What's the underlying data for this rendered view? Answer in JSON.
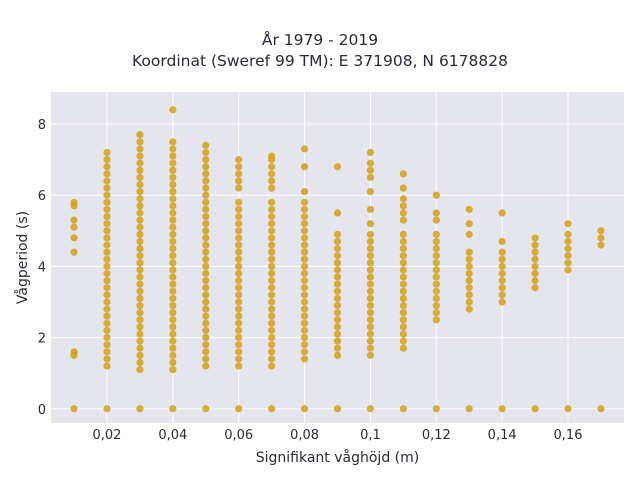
{
  "chart_data": {
    "type": "scatter",
    "title": [
      "År 1979 - 2019",
      "Koordinat (Sweref 99 TM): E 371908, N 6178828"
    ],
    "xlabel": "Signifikant våghöjd (m)",
    "ylabel": "Vågperiod (s)",
    "xlim": [
      0.003,
      0.177
    ],
    "ylim": [
      -0.4,
      8.9
    ],
    "x_ticks": [
      0.02,
      0.04,
      0.06,
      0.08,
      0.1,
      0.12,
      0.14,
      0.16
    ],
    "x_tick_labels": [
      "0,02",
      "0,04",
      "0,06",
      "0,08",
      "0,1",
      "0,12",
      "0,14",
      "0,16"
    ],
    "y_ticks": [
      0,
      2,
      4,
      6,
      8
    ],
    "y_tick_labels": [
      "0",
      "2",
      "4",
      "6",
      "8"
    ],
    "grid": true,
    "colors": {
      "marker": "#D4A017",
      "plot_bg": "#E5E5EE",
      "grid": "#ffffff"
    },
    "series": [
      {
        "x": 0.01,
        "y": [
          0,
          1.5,
          1.6,
          4.4,
          4.8,
          5.1,
          5.3,
          5.7,
          5.8
        ]
      },
      {
        "x": 0.02,
        "y": [
          0,
          1.2,
          1.4,
          1.6,
          1.8,
          2.0,
          2.2,
          2.4,
          2.6,
          2.8,
          3.0,
          3.2,
          3.4,
          3.6,
          3.8,
          4.0,
          4.2,
          4.4,
          4.6,
          4.8,
          5.0,
          5.2,
          5.4,
          5.6,
          5.8,
          6.0,
          6.2,
          6.4,
          6.6,
          6.8,
          7.0,
          7.2
        ]
      },
      {
        "x": 0.03,
        "y": [
          0,
          1.1,
          1.3,
          1.5,
          1.7,
          1.9,
          2.1,
          2.3,
          2.5,
          2.7,
          2.9,
          3.1,
          3.3,
          3.5,
          3.7,
          3.9,
          4.1,
          4.3,
          4.5,
          4.7,
          4.9,
          5.1,
          5.3,
          5.5,
          5.7,
          5.9,
          6.1,
          6.3,
          6.5,
          6.7,
          6.9,
          7.1,
          7.3,
          7.5,
          7.7
        ]
      },
      {
        "x": 0.04,
        "y": [
          0,
          1.1,
          1.3,
          1.5,
          1.7,
          1.9,
          2.1,
          2.3,
          2.5,
          2.7,
          2.9,
          3.1,
          3.3,
          3.5,
          3.7,
          3.9,
          4.1,
          4.3,
          4.5,
          4.7,
          4.9,
          5.1,
          5.3,
          5.5,
          5.7,
          5.9,
          6.1,
          6.3,
          6.5,
          6.7,
          6.9,
          7.1,
          7.3,
          7.5,
          8.4
        ]
      },
      {
        "x": 0.05,
        "y": [
          0,
          1.2,
          1.4,
          1.6,
          1.8,
          2.0,
          2.2,
          2.4,
          2.6,
          2.8,
          3.0,
          3.2,
          3.4,
          3.6,
          3.8,
          4.0,
          4.2,
          4.4,
          4.6,
          4.8,
          5.0,
          5.2,
          5.4,
          5.6,
          5.8,
          6.0,
          6.2,
          6.4,
          6.6,
          6.8,
          7.0,
          7.2,
          7.4
        ]
      },
      {
        "x": 0.06,
        "y": [
          0,
          1.2,
          1.4,
          1.6,
          1.8,
          2.0,
          2.2,
          2.4,
          2.6,
          2.8,
          3.0,
          3.2,
          3.4,
          3.6,
          3.8,
          4.0,
          4.2,
          4.4,
          4.6,
          4.8,
          5.0,
          5.2,
          5.4,
          5.6,
          5.8,
          6.2,
          6.4,
          6.6,
          6.8,
          7.0
        ]
      },
      {
        "x": 0.07,
        "y": [
          0,
          1.2,
          1.4,
          1.6,
          1.8,
          2.0,
          2.2,
          2.4,
          2.6,
          2.8,
          3.0,
          3.2,
          3.4,
          3.6,
          3.8,
          4.0,
          4.2,
          4.4,
          4.6,
          4.8,
          5.0,
          5.2,
          5.4,
          5.6,
          5.8,
          6.2,
          6.4,
          6.6,
          6.8,
          7.0,
          7.1
        ]
      },
      {
        "x": 0.08,
        "y": [
          0,
          1.4,
          1.6,
          1.8,
          2.0,
          2.2,
          2.4,
          2.6,
          2.8,
          3.0,
          3.2,
          3.4,
          3.6,
          3.8,
          4.0,
          4.2,
          4.4,
          4.6,
          4.8,
          5.0,
          5.2,
          5.4,
          5.6,
          5.8,
          6.1,
          6.8,
          7.3
        ]
      },
      {
        "x": 0.09,
        "y": [
          0,
          1.5,
          1.7,
          1.9,
          2.1,
          2.3,
          2.5,
          2.7,
          2.9,
          3.1,
          3.3,
          3.5,
          3.7,
          3.9,
          4.1,
          4.3,
          4.5,
          4.7,
          4.9,
          5.5,
          6.8
        ]
      },
      {
        "x": 0.1,
        "y": [
          0,
          1.5,
          1.7,
          1.9,
          2.1,
          2.3,
          2.5,
          2.7,
          2.9,
          3.1,
          3.3,
          3.5,
          3.7,
          3.9,
          4.1,
          4.3,
          4.5,
          4.7,
          4.9,
          5.2,
          5.6,
          6.1,
          6.5,
          6.7,
          6.9,
          7.2
        ]
      },
      {
        "x": 0.11,
        "y": [
          0,
          1.7,
          1.9,
          2.1,
          2.3,
          2.5,
          2.7,
          2.9,
          3.1,
          3.3,
          3.5,
          3.7,
          3.9,
          4.1,
          4.3,
          4.5,
          4.7,
          4.9,
          5.3,
          5.5,
          5.7,
          5.9,
          6.2,
          6.6
        ]
      },
      {
        "x": 0.12,
        "y": [
          0,
          2.5,
          2.7,
          2.9,
          3.1,
          3.3,
          3.5,
          3.7,
          3.9,
          4.1,
          4.3,
          4.5,
          4.7,
          4.9,
          5.3,
          5.5,
          6.0
        ]
      },
      {
        "x": 0.13,
        "y": [
          0,
          2.8,
          3.0,
          3.2,
          3.4,
          3.6,
          3.8,
          4.0,
          4.2,
          4.4,
          4.9,
          5.2,
          5.6
        ]
      },
      {
        "x": 0.14,
        "y": [
          0,
          3.0,
          3.2,
          3.4,
          3.6,
          3.8,
          4.0,
          4.2,
          4.4,
          4.7,
          5.5
        ]
      },
      {
        "x": 0.15,
        "y": [
          0,
          3.4,
          3.6,
          3.8,
          4.0,
          4.2,
          4.4,
          4.6,
          4.8
        ]
      },
      {
        "x": 0.16,
        "y": [
          0,
          3.9,
          4.1,
          4.3,
          4.5,
          4.7,
          4.9,
          5.2
        ]
      },
      {
        "x": 0.17,
        "y": [
          0,
          4.6,
          4.8,
          5.0
        ]
      }
    ]
  }
}
